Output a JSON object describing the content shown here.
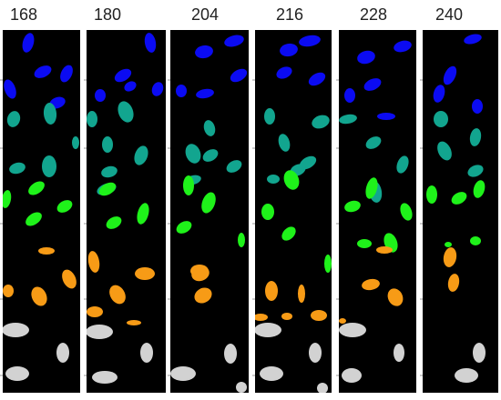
{
  "columns": [
    {
      "label": "168"
    },
    {
      "label": "180"
    },
    {
      "label": "204"
    },
    {
      "label": "216"
    },
    {
      "label": "228"
    },
    {
      "label": "240"
    }
  ],
  "bands": [
    {
      "name": "blue",
      "color": "#0b0bf2"
    },
    {
      "name": "teal",
      "color": "#12a58f"
    },
    {
      "name": "green",
      "color": "#1ff21a"
    },
    {
      "name": "orange",
      "color": "#f79b16"
    },
    {
      "name": "gray",
      "color": "#d2d2d2"
    }
  ],
  "panel_background": "#000000"
}
